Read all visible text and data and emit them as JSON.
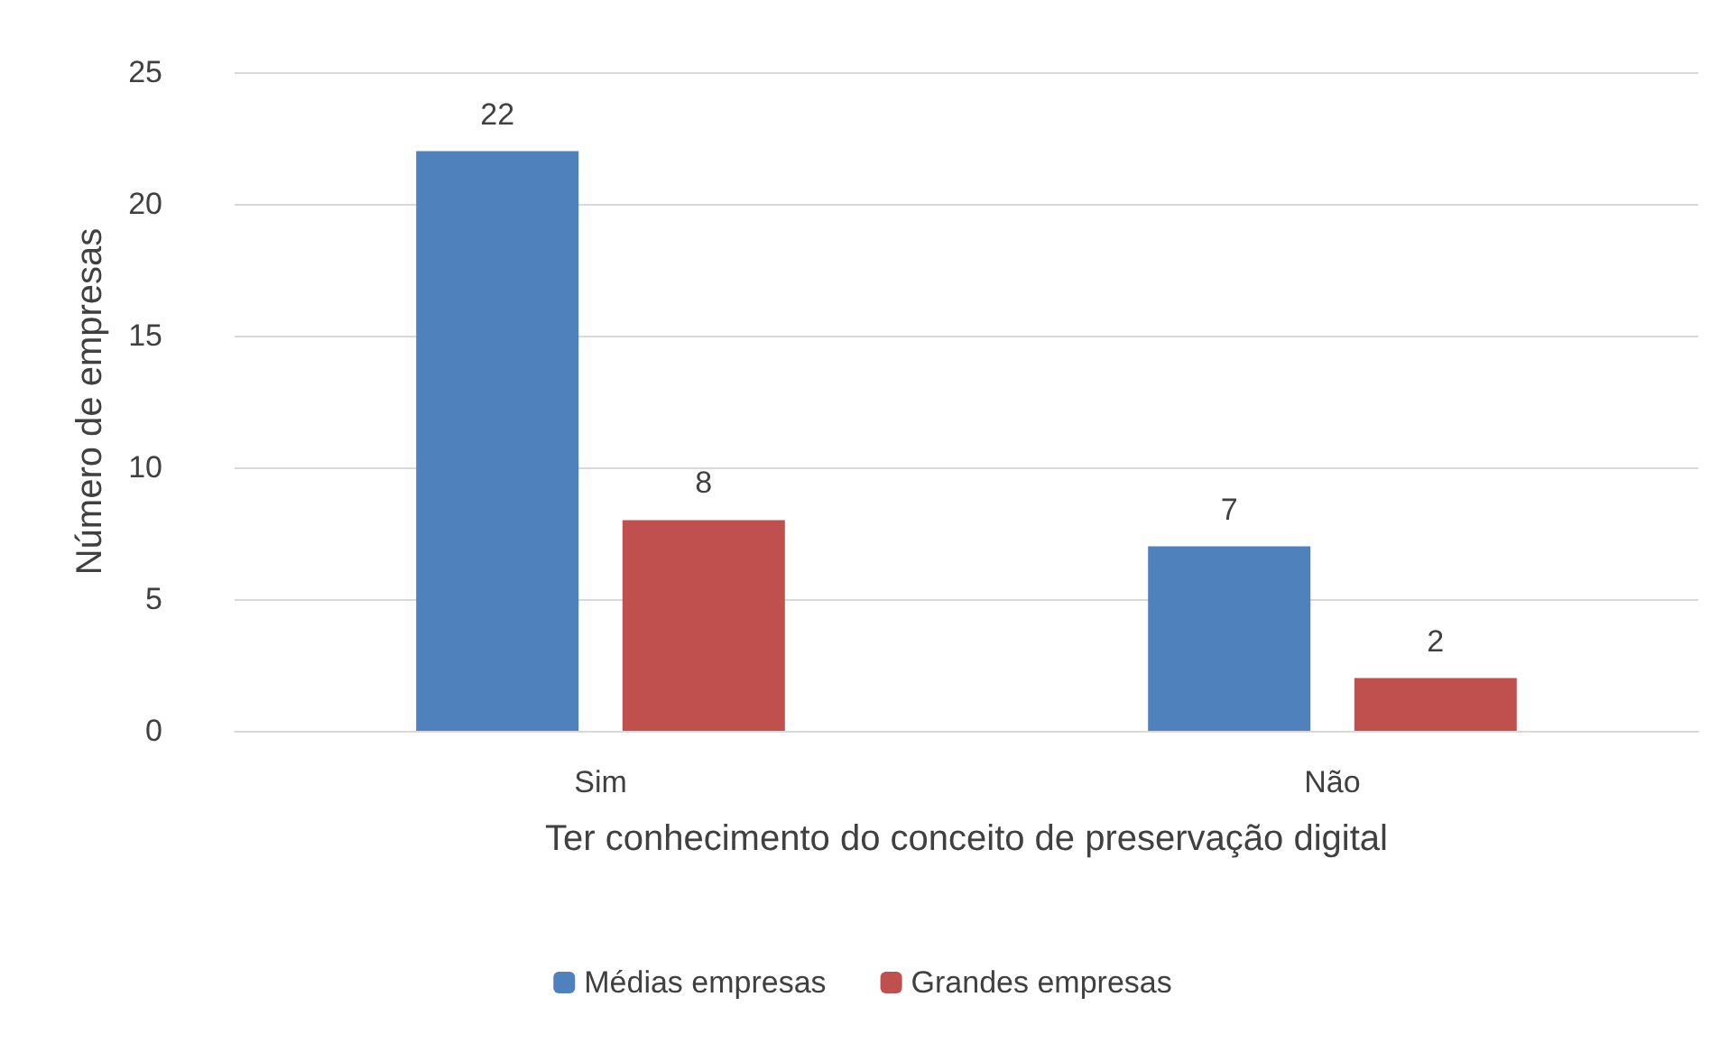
{
  "chart_data": {
    "type": "bar",
    "xlabel": "Ter conhecimento do conceito de preservação digital",
    "ylabel": "Número de empresas",
    "categories": [
      "Sim",
      "Não"
    ],
    "series": [
      {
        "name": "Médias empresas",
        "color": "#4f81bd",
        "values": [
          22,
          7
        ]
      },
      {
        "name": "Grandes empresas",
        "color": "#c0504d",
        "values": [
          8,
          2
        ]
      }
    ],
    "ylim": [
      0,
      25
    ],
    "yticks": [
      0,
      5,
      10,
      15,
      20,
      25
    ],
    "grid": "y",
    "legend": "bottom",
    "data_labels": true
  }
}
